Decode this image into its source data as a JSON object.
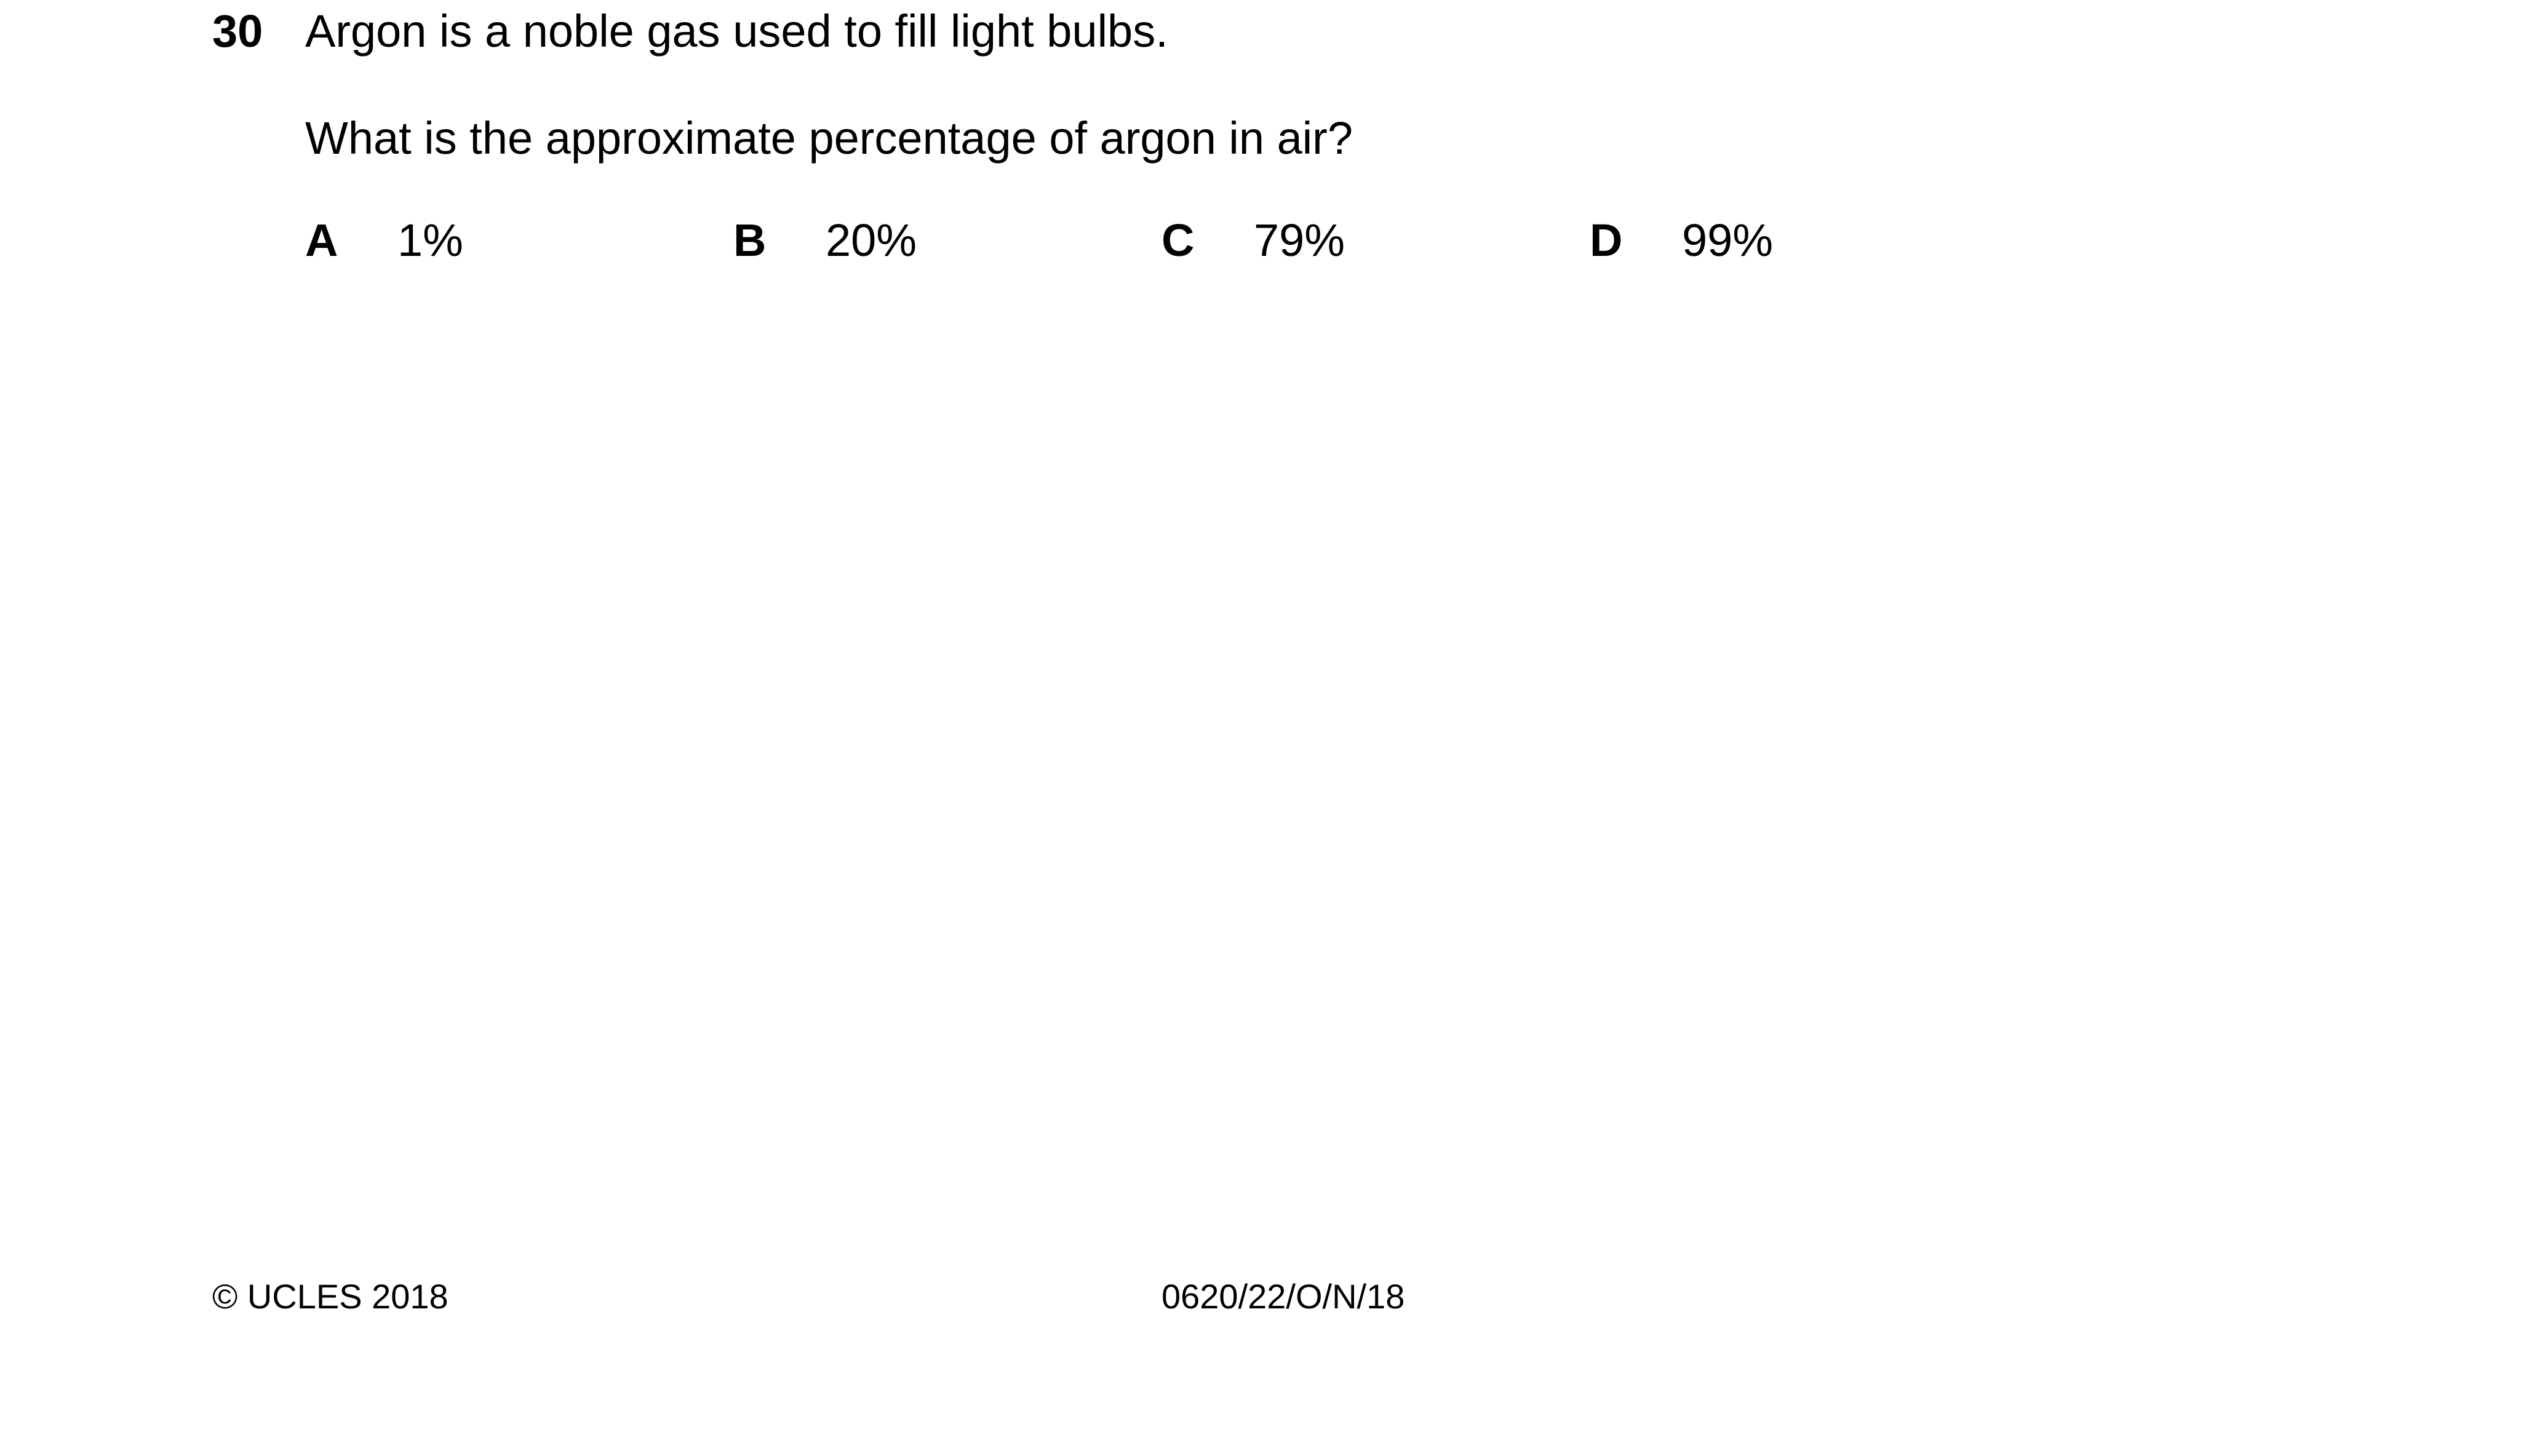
{
  "question": {
    "number": "30",
    "stem": "Argon is a noble gas used to fill light bulbs.",
    "prompt": "What is the approximate percentage of argon in air?",
    "options": [
      {
        "letter": "A",
        "value": "1%"
      },
      {
        "letter": "B",
        "value": "20%"
      },
      {
        "letter": "C",
        "value": "79%"
      },
      {
        "letter": "D",
        "value": "99%"
      }
    ]
  },
  "footer": {
    "copyright": "© UCLES 2018",
    "paper_code": "0620/22/O/N/18"
  }
}
